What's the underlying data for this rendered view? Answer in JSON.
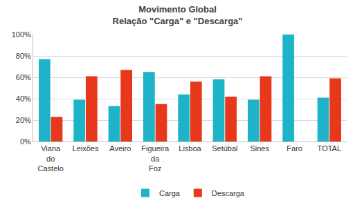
{
  "chart_data": {
    "type": "bar",
    "title": "Movimento Global",
    "subtitle": "Relação \"Carga\" e \"Descarga\"",
    "categories": [
      "Viana do Castelo",
      "Leixões",
      "Aveiro",
      "Figueira da Foz",
      "Lisboa",
      "Setúbal",
      "Sines",
      "Faro",
      "TOTAL"
    ],
    "series": [
      {
        "name": "Carga",
        "color": "#1fb3c9",
        "values": [
          77,
          39,
          33,
          65,
          44,
          58,
          39,
          100,
          41
        ]
      },
      {
        "name": "Descarga",
        "color": "#e8381c",
        "values": [
          23,
          61,
          67,
          35,
          56,
          42,
          61,
          0,
          59
        ]
      }
    ],
    "ylim": [
      0,
      100
    ],
    "yticks": [
      {
        "value": 0,
        "label": "0%"
      },
      {
        "value": 20,
        "label": "20%"
      },
      {
        "value": 40,
        "label": "40%"
      },
      {
        "value": 60,
        "label": "60%"
      },
      {
        "value": 80,
        "label": "80%"
      },
      {
        "value": 100,
        "label": "100%"
      }
    ],
    "grid": true,
    "legend": "bottom"
  }
}
